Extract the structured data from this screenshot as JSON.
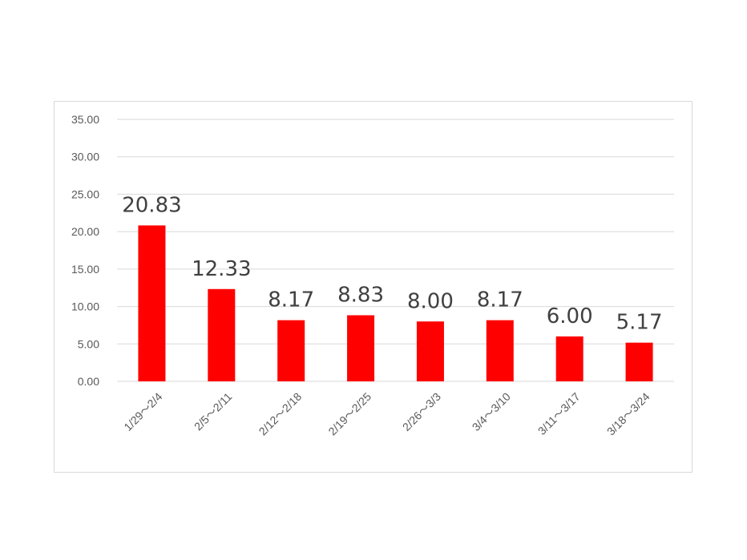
{
  "chart_data": {
    "type": "bar",
    "title": "",
    "xlabel": "",
    "ylabel": "",
    "categories": [
      "1/29～2/4",
      "2/5～2/11",
      "2/12～2/18",
      "2/19～2/25",
      "2/26～3/3",
      "3/4～3/10",
      "3/11～3/17",
      "3/18～3/24"
    ],
    "values": [
      20.83,
      12.33,
      8.17,
      8.83,
      8.0,
      8.17,
      6.0,
      5.17
    ],
    "data_labels": [
      "20.83",
      "12.33",
      "8.17",
      "8.83",
      "8.00",
      "8.17",
      "6.00",
      "5.17"
    ],
    "y_ticks": [
      "0.00",
      "5.00",
      "10.00",
      "15.00",
      "20.00",
      "25.00",
      "30.00",
      "35.00"
    ],
    "ylim": [
      0,
      35
    ],
    "grid": true,
    "legend": "none",
    "bar_color": "#ff0000",
    "gridline_color": "#d9d9d9",
    "label_color": "#404040",
    "axis_text_color": "#595959"
  }
}
